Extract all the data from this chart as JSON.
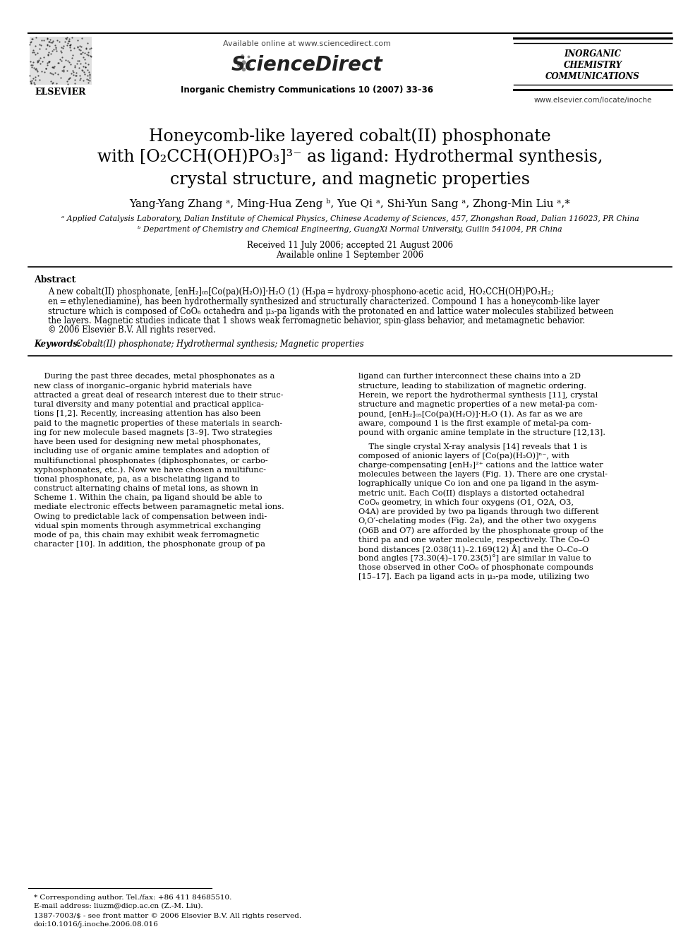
{
  "bg_color": "#ffffff",
  "title_line1": "Honeycomb-like layered cobalt(II) phosphonate",
  "title_line2": "with [O₂CCH(OH)PO₃]³⁻ as ligand: Hydrothermal synthesis,",
  "title_line3": "crystal structure, and magnetic properties",
  "authors": "Yang-Yang Zhang ᵃ, Ming-Hua Zeng ᵇ, Yue Qi ᵃ, Shi-Yun Sang ᵃ, Zhong-Min Liu ᵃ,*",
  "affil_a": "ᵃ Applied Catalysis Laboratory, Dalian Institute of Chemical Physics, Chinese Academy of Sciences, 457, Zhongshan Road, Dalian 116023, PR China",
  "affil_b": "ᵇ Department of Chemistry and Chemical Engineering, GuangXi Normal University, Guilin 541004, PR China",
  "received": "Received 11 July 2006; accepted 21 August 2006",
  "available": "Available online 1 September 2006",
  "journal_header": "Inorganic Chemistry Communications 10 (2007) 33–36",
  "sciencedirect_text": "Available online at www.sciencedirect.com",
  "sciencedirect_logo": "ScienceDirect",
  "journal_name_line1": "INORGANIC",
  "journal_name_line2": "CHEMISTRY",
  "journal_name_line3": "COMMUNICATIONS",
  "journal_url": "www.elsevier.com/locate/inoche",
  "elsevier_text": "ELSEVIER",
  "abstract_title": "Abstract",
  "abstract_lines": [
    "A new cobalt(II) phosphonate, [enH₂]₀₅[Co(pa)(H₂O)]·H₂O (1) (H₃pa = hydroxy-phosphono-acetic acid, HO₂CCH(OH)PO₃H₂;",
    "en = ethylenediamine), has been hydrothermally synthesized and structurally characterized. Compound 1 has a honeycomb-like layer",
    "structure which is composed of CoO₆ octahedra and μ₃-pa ligands with the protonated en and lattice water molecules stabilized between",
    "the layers. Magnetic studies indicate that 1 shows weak ferromagnetic behavior, spin-glass behavior, and metamagnetic behavior.",
    "© 2006 Elsevier B.V. All rights reserved."
  ],
  "keywords_label": "Keywords:",
  "keywords_text": "Cobalt(II) phosphonate; Hydrothermal synthesis; Magnetic properties",
  "body_col1_lines": [
    "    During the past three decades, metal phosphonates as a",
    "new class of inorganic–organic hybrid materials have",
    "attracted a great deal of research interest due to their struc-",
    "tural diversity and many potential and practical applica-",
    "tions [1,2]. Recently, increasing attention has also been",
    "paid to the magnetic properties of these materials in search-",
    "ing for new molecule based magnets [3–9]. Two strategies",
    "have been used for designing new metal phosphonates,",
    "including use of organic amine templates and adoption of",
    "multifunctional phosphonates (diphosphonates, or carbo-",
    "xyphosphonates, etc.). Now we have chosen a multifunc-",
    "tional phosphonate, pa, as a bischelating ligand to",
    "construct alternating chains of metal ions, as shown in",
    "Scheme 1. Within the chain, pa ligand should be able to",
    "mediate electronic effects between paramagnetic metal ions.",
    "Owing to predictable lack of compensation between indi-",
    "vidual spin moments through asymmetrical exchanging",
    "mode of pa, this chain may exhibit weak ferromagnetic",
    "character [10]. In addition, the phosphonate group of pa"
  ],
  "body_col2_lines": [
    "ligand can further interconnect these chains into a 2D",
    "structure, leading to stabilization of magnetic ordering.",
    "Herein, we report the hydrothermal synthesis [11], crystal",
    "structure and magnetic properties of a new metal-pa com-",
    "pound, [enH₂]₀₅[Co(pa)(H₂O)]·H₂O (1). As far as we are",
    "aware, compound 1 is the first example of metal-pa com-",
    "pound with organic amine template in the structure [12,13].",
    "",
    "    The single crystal X-ray analysis [14] reveals that 1 is",
    "composed of anionic layers of [Co(pa)(H₂O)]ⁿ⁻, with",
    "charge-compensating [enH₂]²⁺ cations and the lattice water",
    "molecules between the layers (Fig. 1). There are one crystal-",
    "lographically unique Co ion and one pa ligand in the asym-",
    "metric unit. Each Co(II) displays a distorted octahedral",
    "CoO₆ geometry, in which four oxygens (O1, O2A, O3,",
    "O4A) are provided by two pa ligands through two different",
    "O,O′-chelating modes (Fig. 2a), and the other two oxygens",
    "(O6B and O7) are afforded by the phosphonate group of the",
    "third pa and one water molecule, respectively. The Co–O",
    "bond distances [2.038(11)–2.169(12) Å] and the O–Co–O",
    "bond angles [73.30(4)–170.23(5)°] are similar in value to",
    "those observed in other CoO₆ of phosphonate compounds",
    "[15–17]. Each pa ligand acts in μ₃-pa mode, utilizing two"
  ],
  "footnote_star": "* Corresponding author. Tel./fax: +86 411 84685510.",
  "footnote_email": "E-mail address: liuzm@dicp.ac.cn (Z.-M. Liu).",
  "footnote_issn": "1387-7003/$ - see front matter © 2006 Elsevier B.V. All rights reserved.",
  "footnote_doi": "doi:10.1016/j.inoche.2006.08.016"
}
